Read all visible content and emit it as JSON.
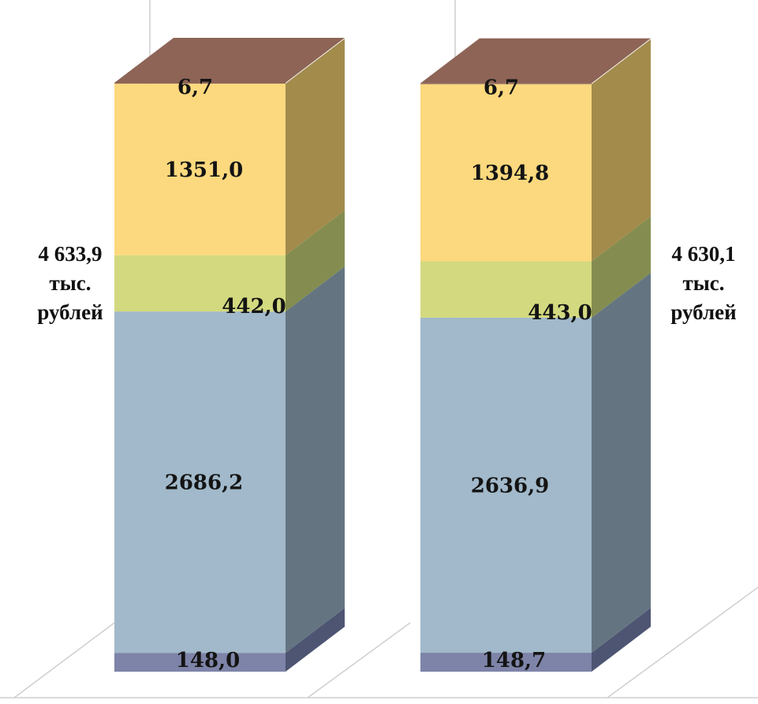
{
  "chart_data": {
    "type": "bar",
    "stacked": true,
    "three_d": true,
    "categories": [
      "",
      ""
    ],
    "series": [
      {
        "values": [
          148.0,
          148.7
        ],
        "labels": [
          "148,0",
          "148,7"
        ],
        "color": "#7e84a8",
        "side_color": "#4e5573"
      },
      {
        "values": [
          2686.2,
          2636.9
        ],
        "labels": [
          "2686,2",
          "2636,9"
        ],
        "color": "#a1b9ca",
        "side_color": "#647581"
      },
      {
        "values": [
          442.0,
          443.0
        ],
        "labels": [
          "442,0",
          "443,0"
        ],
        "color": "#d3d97f",
        "side_color": "#848d4f"
      },
      {
        "values": [
          1351.0,
          1394.8
        ],
        "labels": [
          "1351,0",
          "1394,8"
        ],
        "color": "#fcd97e",
        "side_color": "#a38b4c"
      },
      {
        "values": [
          6.7,
          6.7
        ],
        "labels": [
          "6,7",
          "6,7"
        ],
        "color": "#8d6456",
        "side_color": "#8d6456"
      }
    ],
    "totals": [
      {
        "value": "4 633,9",
        "unit_line1": "тыс.",
        "unit_line2": "рублей"
      },
      {
        "value": "4 630,1",
        "unit_line1": "тыс.",
        "unit_line2": "рублей"
      }
    ],
    "title": "",
    "xlabel": "",
    "ylabel": "",
    "legend": "none",
    "grid": false
  }
}
